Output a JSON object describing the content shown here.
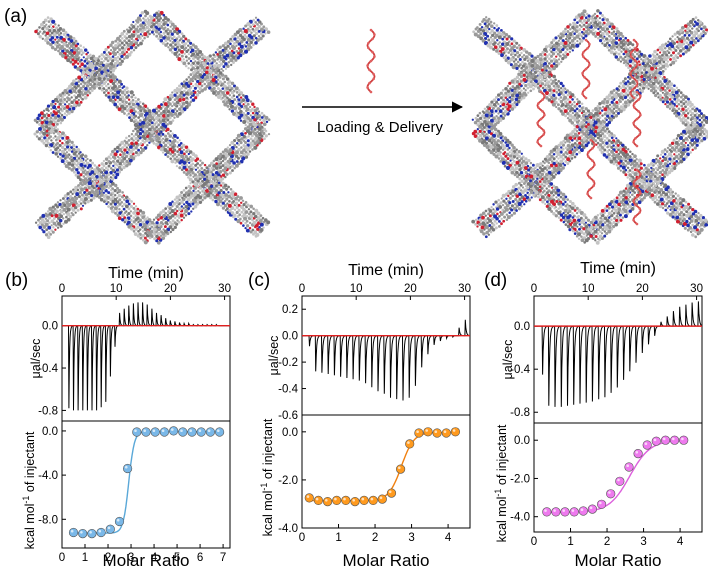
{
  "panel_a": {
    "label": "(a)",
    "arrow_label": "Loading & Delivery",
    "colors": {
      "framework_gray": "#9a9a9a",
      "nitrogen_blue": "#2030b0",
      "oxygen_red": "#d02030",
      "strand_red": "#d04040"
    }
  },
  "chart_data": [
    {
      "type": "line",
      "panel_label": "(b)",
      "title": "Time (min)",
      "top": {
        "ylabel": "μal/sec",
        "xlim": [
          0,
          31
        ],
        "ylim": [
          -0.9,
          0.28
        ],
        "xticks": [
          0,
          10,
          20,
          30
        ],
        "yticks": [
          0.0,
          -0.4,
          -0.8
        ],
        "ytick_labels": [
          "0.0",
          "-0.4",
          "-0.8"
        ],
        "inj_start": 1.2,
        "inj_interval": 0.85,
        "peaks": [
          -0.78,
          -0.8,
          -0.8,
          -0.8,
          -0.8,
          -0.8,
          -0.8,
          -0.77,
          -0.72,
          -0.48,
          -0.2,
          0.12,
          0.16,
          0.19,
          0.21,
          0.22,
          0.22,
          0.2,
          0.16,
          0.12,
          0.1,
          0.07,
          0.05,
          0.04,
          0.03,
          0.02,
          0.02,
          0.01,
          0.01,
          0.01,
          0.01,
          0.01,
          0.01
        ]
      },
      "bottom": {
        "ylabel": "kcal mol-1 of injectant",
        "xlabel": "Molar Ratio",
        "xlim": [
          0,
          7.3
        ],
        "ylim": [
          -10.6,
          0.9
        ],
        "xticks": [
          0,
          1,
          2,
          3,
          4,
          5,
          6,
          7
        ],
        "yticks": [
          0.0,
          -4.0,
          -8.0
        ],
        "ytick_labels": [
          "0.0",
          "-4.0",
          "-8.0"
        ],
        "x": [
          0.5,
          0.9,
          1.3,
          1.7,
          2.1,
          2.5,
          2.85,
          3.25,
          3.65,
          4.05,
          4.45,
          4.85,
          5.25,
          5.65,
          6.05,
          6.45,
          6.85
        ],
        "y": [
          -9.2,
          -9.3,
          -9.3,
          -9.2,
          -8.9,
          -8.2,
          -3.4,
          -0.1,
          -0.1,
          -0.1,
          -0.1,
          0.0,
          -0.1,
          -0.1,
          -0.1,
          -0.1,
          -0.1
        ],
        "fit": {
          "base": -9.25,
          "top": -0.05,
          "center": 2.9,
          "width": 0.12
        },
        "marker_color": "#7ab8e8",
        "line_color": "#5aa8d8"
      }
    },
    {
      "type": "line",
      "panel_label": "(c)",
      "title": "Time (min)",
      "top": {
        "ylabel": "μal/sec",
        "xlim": [
          0,
          31
        ],
        "ylim": [
          -0.6,
          0.3
        ],
        "xticks": [
          0,
          10,
          20,
          30
        ],
        "yticks": [
          0.2,
          0.0,
          -0.2,
          -0.4,
          -0.6
        ],
        "ytick_labels": [
          "0.2",
          "0.0",
          "-0.2",
          "-0.4",
          "-0.6"
        ],
        "inj_start": 1.3,
        "inj_interval": 1.15,
        "peaks": [
          -0.08,
          -0.27,
          -0.28,
          -0.29,
          -0.3,
          -0.31,
          -0.32,
          -0.33,
          -0.34,
          -0.36,
          -0.39,
          -0.42,
          -0.44,
          -0.47,
          -0.48,
          -0.49,
          -0.47,
          -0.38,
          -0.24,
          -0.14,
          -0.07,
          -0.04,
          -0.02,
          -0.01,
          0.06,
          0.12,
          0.18
        ]
      },
      "bottom": {
        "ylabel": "kcal mol-1 of injectant",
        "xlabel": "Molar Ratio",
        "xlim": [
          0,
          4.6
        ],
        "ylim": [
          -4.0,
          0.7
        ],
        "xticks": [
          0,
          1,
          2,
          3,
          4
        ],
        "yticks": [
          0.0,
          -2.0,
          -4.0
        ],
        "ytick_labels": [
          "0.0",
          "-2.0",
          "-4.0"
        ],
        "x": [
          0.2,
          0.45,
          0.7,
          0.95,
          1.2,
          1.45,
          1.7,
          1.95,
          2.2,
          2.45,
          2.7,
          2.95,
          3.2,
          3.45,
          3.7,
          3.95,
          4.2
        ],
        "y": [
          -2.75,
          -2.85,
          -2.9,
          -2.85,
          -2.85,
          -2.9,
          -2.85,
          -2.85,
          -2.8,
          -2.55,
          -1.55,
          -0.5,
          -0.05,
          0.0,
          -0.05,
          -0.05,
          0.0
        ],
        "fit": {
          "base": -2.86,
          "top": -0.02,
          "center": 2.72,
          "width": 0.17
        },
        "marker_color": "#ff9a1e",
        "line_color": "#f08010"
      }
    },
    {
      "type": "line",
      "panel_label": "(d)",
      "title": "Time (min)",
      "top": {
        "ylabel": "μal/sec",
        "xlim": [
          0,
          31
        ],
        "ylim": [
          -0.9,
          0.28
        ],
        "xticks": [
          0,
          10,
          20,
          30
        ],
        "yticks": [
          0.0,
          -0.4,
          -0.8
        ],
        "ytick_labels": [
          "0.0",
          "-0.4",
          "-0.8"
        ],
        "inj_start": 1.5,
        "inj_interval": 1.15,
        "peaks": [
          -0.45,
          -0.74,
          -0.75,
          -0.75,
          -0.74,
          -0.73,
          -0.72,
          -0.71,
          -0.7,
          -0.68,
          -0.66,
          -0.62,
          -0.57,
          -0.5,
          -0.42,
          -0.34,
          -0.25,
          -0.17,
          -0.09,
          0.04,
          0.09,
          0.14,
          0.18,
          0.2,
          0.22,
          0.23
        ]
      },
      "bottom": {
        "ylabel": "kcal mol-1 of injectant",
        "xlabel": "Molar Ratio",
        "xlim": [
          0,
          4.6
        ],
        "ylim": [
          -4.8,
          0.9
        ],
        "xticks": [
          0,
          1,
          2,
          3,
          4
        ],
        "yticks": [
          0.0,
          -2.0,
          -4.0
        ],
        "ytick_labels": [
          "0.0",
          "-2.0",
          "-4.0"
        ],
        "x": [
          0.35,
          0.6,
          0.85,
          1.1,
          1.35,
          1.6,
          1.85,
          2.1,
          2.35,
          2.6,
          2.85,
          3.1,
          3.35,
          3.6,
          3.85,
          4.1
        ],
        "y": [
          -3.75,
          -3.75,
          -3.75,
          -3.75,
          -3.7,
          -3.6,
          -3.35,
          -2.8,
          -2.15,
          -1.4,
          -0.7,
          -0.25,
          -0.05,
          0.0,
          0.0,
          0.0
        ],
        "fit": {
          "base": -3.77,
          "top": 0.0,
          "center": 2.62,
          "width": 0.28
        },
        "marker_color": "#ee7aee",
        "line_color": "#dc60dc"
      }
    }
  ]
}
